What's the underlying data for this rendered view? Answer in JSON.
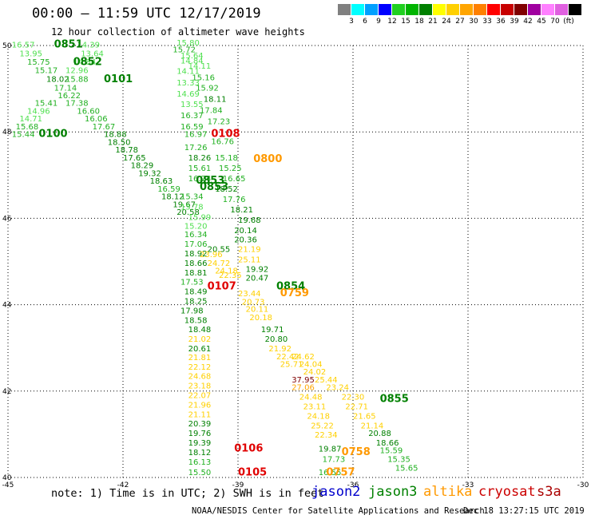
{
  "header": {
    "title": "00:00 – 11:59 UTC 12/17/2019",
    "subtitle": "12 hour collection of altimeter wave heights"
  },
  "legend": {
    "colors": [
      "#808080",
      "#00ffff",
      "#00a0ff",
      "#0000ff",
      "#20d020",
      "#00b400",
      "#008000",
      "#ffff00",
      "#ffd000",
      "#ffa500",
      "#ff8000",
      "#ff0000",
      "#c80000",
      "#800000",
      "#a000a0",
      "#ff80ff",
      "#e060e0",
      "#000000"
    ],
    "labels": [
      "3",
      "6",
      "9",
      "12",
      "15",
      "18",
      "21",
      "24",
      "27",
      "30",
      "33",
      "36",
      "39",
      "42",
      "45",
      "70",
      "(ft)"
    ]
  },
  "footer": {
    "note": "note: 1) Time is in UTC; 2) SWH is in feet",
    "credit": "NOAA/NESDIS Center for Satellite Applications and Research",
    "timestamp": "Dec 18 13:27:15 UTC 2019"
  },
  "satellites": [
    {
      "name": "jason2",
      "color": "#0000cc"
    },
    {
      "name": "jason3",
      "color": "#008000"
    },
    {
      "name": "altika",
      "color": "#ff9900"
    },
    {
      "name": "cryosat",
      "color": "#cc0000"
    },
    {
      "name": "s3a",
      "color": "#aa0000"
    }
  ],
  "chart_data": {
    "type": "scatter",
    "xlim": [
      -45,
      -30
    ],
    "ylim": [
      40,
      50
    ],
    "x_ticks": [
      -45,
      -42,
      -39,
      -36,
      -33,
      -30
    ],
    "y_ticks": [
      40,
      42,
      44,
      46,
      48,
      50
    ],
    "grid": true,
    "time_labels": [
      {
        "text": "0851",
        "x": -43.8,
        "y": 49.95,
        "color": "#008000"
      },
      {
        "text": "0852",
        "x": -43.3,
        "y": 49.55,
        "color": "#008000"
      },
      {
        "text": "0101",
        "x": -42.5,
        "y": 49.15,
        "color": "#008000"
      },
      {
        "text": "0100",
        "x": -44.2,
        "y": 47.88,
        "color": "#008000"
      },
      {
        "text": "0108",
        "x": -39.7,
        "y": 47.88,
        "color": "#e00000"
      },
      {
        "text": "0800",
        "x": -38.6,
        "y": 47.3,
        "color": "#ff9900"
      },
      {
        "text": "0853",
        "x": -40.1,
        "y": 46.8,
        "color": "#008000"
      },
      {
        "text": "0853",
        "x": -40.0,
        "y": 46.65,
        "color": "#008000"
      },
      {
        "text": "0854",
        "x": -38.0,
        "y": 44.35,
        "color": "#008000"
      },
      {
        "text": "0107",
        "x": -39.8,
        "y": 44.35,
        "color": "#e00000"
      },
      {
        "text": "0759",
        "x": -37.9,
        "y": 44.2,
        "color": "#ff9900"
      },
      {
        "text": "0855",
        "x": -35.3,
        "y": 41.75,
        "color": "#008000"
      },
      {
        "text": "0106",
        "x": -39.1,
        "y": 40.6,
        "color": "#e00000"
      },
      {
        "text": "0758",
        "x": -36.3,
        "y": 40.52,
        "color": "#ff9900"
      },
      {
        "text": "0105",
        "x": -39.0,
        "y": 40.05,
        "color": "#e00000"
      },
      {
        "text": "0757",
        "x": -36.7,
        "y": 40.05,
        "color": "#ff9900"
      }
    ],
    "swh_labels": [
      {
        "text": "16.57",
        "x": -44.9,
        "y": 49.95,
        "color": "#50e050"
      },
      {
        "text": "14.39",
        "x": -43.2,
        "y": 49.95,
        "color": "#50e050"
      },
      {
        "text": "13.95",
        "x": -44.7,
        "y": 49.75,
        "color": "#50e050"
      },
      {
        "text": "13.64",
        "x": -43.1,
        "y": 49.75,
        "color": "#50e050"
      },
      {
        "text": "15.75",
        "x": -44.5,
        "y": 49.56,
        "color": "#20b020"
      },
      {
        "text": "14.84",
        "x": -43.3,
        "y": 49.56,
        "color": "#50e050"
      },
      {
        "text": "15.17",
        "x": -44.3,
        "y": 49.36,
        "color": "#20b020"
      },
      {
        "text": "12.96",
        "x": -43.5,
        "y": 49.36,
        "color": "#50e050"
      },
      {
        "text": "18.02",
        "x": -44.0,
        "y": 49.16,
        "color": "#008000"
      },
      {
        "text": "15.88",
        "x": -43.5,
        "y": 49.16,
        "color": "#20b020"
      },
      {
        "text": "17.14",
        "x": -43.8,
        "y": 48.96,
        "color": "#20b020"
      },
      {
        "text": "16.22",
        "x": -43.7,
        "y": 48.78,
        "color": "#20b020"
      },
      {
        "text": "15.41",
        "x": -44.3,
        "y": 48.6,
        "color": "#20b020"
      },
      {
        "text": "17.38",
        "x": -43.5,
        "y": 48.6,
        "color": "#20b020"
      },
      {
        "text": "14.96",
        "x": -44.5,
        "y": 48.42,
        "color": "#50e050"
      },
      {
        "text": "16.60",
        "x": -43.2,
        "y": 48.42,
        "color": "#20b020"
      },
      {
        "text": "14.71",
        "x": -44.7,
        "y": 48.24,
        "color": "#50e050"
      },
      {
        "text": "16.06",
        "x": -43.0,
        "y": 48.24,
        "color": "#20b020"
      },
      {
        "text": "15.68",
        "x": -44.8,
        "y": 48.06,
        "color": "#20b020"
      },
      {
        "text": "17.67",
        "x": -42.8,
        "y": 48.06,
        "color": "#20b020"
      },
      {
        "text": "15.44",
        "x": -44.9,
        "y": 47.88,
        "color": "#20b020"
      },
      {
        "text": "18.88",
        "x": -42.5,
        "y": 47.88,
        "color": "#008000"
      },
      {
        "text": "18.50",
        "x": -42.4,
        "y": 47.7,
        "color": "#008000"
      },
      {
        "text": "18.78",
        "x": -42.2,
        "y": 47.52,
        "color": "#008000"
      },
      {
        "text": "17.65",
        "x": -42.0,
        "y": 47.34,
        "color": "#008000"
      },
      {
        "text": "18.29",
        "x": -41.8,
        "y": 47.16,
        "color": "#008000"
      },
      {
        "text": "19.32",
        "x": -41.6,
        "y": 46.98,
        "color": "#008000"
      },
      {
        "text": "18.63",
        "x": -41.3,
        "y": 46.8,
        "color": "#008000"
      },
      {
        "text": "16.59",
        "x": -41.1,
        "y": 46.62,
        "color": "#20b020"
      },
      {
        "text": "18.12",
        "x": -41.0,
        "y": 46.44,
        "color": "#008000"
      },
      {
        "text": "19.67",
        "x": -40.7,
        "y": 46.26,
        "color": "#008000"
      },
      {
        "text": "20.58",
        "x": -40.6,
        "y": 46.08,
        "color": "#008000"
      },
      {
        "text": "15.80",
        "x": -40.6,
        "y": 50.0,
        "color": "#50e050"
      },
      {
        "text": "15.72",
        "x": -40.7,
        "y": 49.84,
        "color": "#20b020"
      },
      {
        "text": "15.64",
        "x": -40.5,
        "y": 49.7,
        "color": "#50e050"
      },
      {
        "text": "14.84",
        "x": -40.5,
        "y": 49.58,
        "color": "#50e050"
      },
      {
        "text": "14.11",
        "x": -40.3,
        "y": 49.46,
        "color": "#50e050"
      },
      {
        "text": "14.11",
        "x": -40.6,
        "y": 49.34,
        "color": "#50e050"
      },
      {
        "text": "15.16",
        "x": -40.2,
        "y": 49.2,
        "color": "#20b020"
      },
      {
        "text": "13.33",
        "x": -40.6,
        "y": 49.08,
        "color": "#50e050"
      },
      {
        "text": "15.92",
        "x": -40.1,
        "y": 48.96,
        "color": "#20b020"
      },
      {
        "text": "14.69",
        "x": -40.6,
        "y": 48.82,
        "color": "#50e050"
      },
      {
        "text": "18.11",
        "x": -39.9,
        "y": 48.7,
        "color": "#008000"
      },
      {
        "text": "13.55",
        "x": -40.5,
        "y": 48.58,
        "color": "#50e050"
      },
      {
        "text": "17.84",
        "x": -40.0,
        "y": 48.44,
        "color": "#20b020"
      },
      {
        "text": "16.37",
        "x": -40.5,
        "y": 48.32,
        "color": "#20b020"
      },
      {
        "text": "17.23",
        "x": -39.8,
        "y": 48.18,
        "color": "#20b020"
      },
      {
        "text": "16.59",
        "x": -40.5,
        "y": 48.06,
        "color": "#20b020"
      },
      {
        "text": "16.97",
        "x": -40.4,
        "y": 47.88,
        "color": "#20b020"
      },
      {
        "text": "16.76",
        "x": -39.7,
        "y": 47.72,
        "color": "#20b020"
      },
      {
        "text": "17.26",
        "x": -40.4,
        "y": 47.58,
        "color": "#20b020"
      },
      {
        "text": "18.26",
        "x": -40.3,
        "y": 47.34,
        "color": "#008000"
      },
      {
        "text": "15.18",
        "x": -39.6,
        "y": 47.34,
        "color": "#20b020"
      },
      {
        "text": "15.61",
        "x": -40.3,
        "y": 47.1,
        "color": "#20b020"
      },
      {
        "text": "15.25",
        "x": -39.5,
        "y": 47.1,
        "color": "#20b020"
      },
      {
        "text": "16.74",
        "x": -40.3,
        "y": 46.86,
        "color": "#20b020"
      },
      {
        "text": "16.65",
        "x": -39.4,
        "y": 46.86,
        "color": "#20b020"
      },
      {
        "text": "18.52",
        "x": -39.6,
        "y": 46.62,
        "color": "#008000"
      },
      {
        "text": "15.34",
        "x": -40.5,
        "y": 46.44,
        "color": "#20b020"
      },
      {
        "text": "17.76",
        "x": -39.4,
        "y": 46.38,
        "color": "#20b020"
      },
      {
        "text": "15.78",
        "x": -40.5,
        "y": 46.2,
        "color": "#50e050"
      },
      {
        "text": "18.21",
        "x": -39.2,
        "y": 46.14,
        "color": "#008000"
      },
      {
        "text": "15.99",
        "x": -40.3,
        "y": 45.96,
        "color": "#50e050"
      },
      {
        "text": "19.68",
        "x": -39.0,
        "y": 45.9,
        "color": "#008000"
      },
      {
        "text": "15.20",
        "x": -40.4,
        "y": 45.76,
        "color": "#50e050"
      },
      {
        "text": "20.14",
        "x": -39.1,
        "y": 45.66,
        "color": "#008000"
      },
      {
        "text": "16.34",
        "x": -40.4,
        "y": 45.56,
        "color": "#20b020"
      },
      {
        "text": "20.36",
        "x": -39.1,
        "y": 45.44,
        "color": "#008000"
      },
      {
        "text": "17.06",
        "x": -40.4,
        "y": 45.34,
        "color": "#20b020"
      },
      {
        "text": "20.55",
        "x": -39.8,
        "y": 45.22,
        "color": "#008000"
      },
      {
        "text": "21.19",
        "x": -39.0,
        "y": 45.22,
        "color": "#ffd000"
      },
      {
        "text": "18.92",
        "x": -40.4,
        "y": 45.12,
        "color": "#008000"
      },
      {
        "text": "23.96",
        "x": -40.0,
        "y": 45.1,
        "color": "#ffd000"
      },
      {
        "text": "25.11",
        "x": -39.0,
        "y": 44.98,
        "color": "#ffd000"
      },
      {
        "text": "18.66",
        "x": -40.4,
        "y": 44.9,
        "color": "#008000"
      },
      {
        "text": "24.72",
        "x": -39.8,
        "y": 44.9,
        "color": "#ffd000"
      },
      {
        "text": "19.92",
        "x": -38.8,
        "y": 44.76,
        "color": "#008000"
      },
      {
        "text": "18.81",
        "x": -40.4,
        "y": 44.68,
        "color": "#008000"
      },
      {
        "text": "24.18",
        "x": -39.6,
        "y": 44.72,
        "color": "#ffd000"
      },
      {
        "text": "22.35",
        "x": -39.5,
        "y": 44.62,
        "color": "#ffd000"
      },
      {
        "text": "20.47",
        "x": -38.8,
        "y": 44.56,
        "color": "#008000"
      },
      {
        "text": "17.53",
        "x": -40.5,
        "y": 44.46,
        "color": "#20b020"
      },
      {
        "text": "18.49",
        "x": -40.4,
        "y": 44.24,
        "color": "#008000"
      },
      {
        "text": "23.44",
        "x": -39.0,
        "y": 44.2,
        "color": "#ffd000"
      },
      {
        "text": "18.25",
        "x": -40.4,
        "y": 44.02,
        "color": "#008000"
      },
      {
        "text": "20.73",
        "x": -38.9,
        "y": 44.0,
        "color": "#ffd000"
      },
      {
        "text": "17.98",
        "x": -40.5,
        "y": 43.8,
        "color": "#008000"
      },
      {
        "text": "20.11",
        "x": -38.8,
        "y": 43.84,
        "color": "#ffd000"
      },
      {
        "text": "18.58",
        "x": -40.4,
        "y": 43.58,
        "color": "#008000"
      },
      {
        "text": "20.18",
        "x": -38.7,
        "y": 43.64,
        "color": "#ffd000"
      },
      {
        "text": "18.48",
        "x": -40.3,
        "y": 43.36,
        "color": "#008000"
      },
      {
        "text": "19.71",
        "x": -38.4,
        "y": 43.36,
        "color": "#008000"
      },
      {
        "text": "21.02",
        "x": -40.3,
        "y": 43.14,
        "color": "#ffd000"
      },
      {
        "text": "20.80",
        "x": -38.3,
        "y": 43.14,
        "color": "#008000"
      },
      {
        "text": "20.61",
        "x": -40.3,
        "y": 42.92,
        "color": "#008000"
      },
      {
        "text": "21.92",
        "x": -38.2,
        "y": 42.92,
        "color": "#ffd000"
      },
      {
        "text": "21.81",
        "x": -40.3,
        "y": 42.72,
        "color": "#ffd000"
      },
      {
        "text": "22.42",
        "x": -38.0,
        "y": 42.74,
        "color": "#ffd000"
      },
      {
        "text": "24.62",
        "x": -37.6,
        "y": 42.74,
        "color": "#ffd000"
      },
      {
        "text": "22.12",
        "x": -40.3,
        "y": 42.5,
        "color": "#ffd000"
      },
      {
        "text": "25.71",
        "x": -37.9,
        "y": 42.56,
        "color": "#ffd000"
      },
      {
        "text": "24.04",
        "x": -37.4,
        "y": 42.56,
        "color": "#ffd000"
      },
      {
        "text": "24.68",
        "x": -40.3,
        "y": 42.28,
        "color": "#ffd000"
      },
      {
        "text": "24.02",
        "x": -37.3,
        "y": 42.38,
        "color": "#ffd000"
      },
      {
        "text": "37.95",
        "x": -37.6,
        "y": 42.2,
        "color": "#800000"
      },
      {
        "text": "25.44",
        "x": -37.0,
        "y": 42.2,
        "color": "#ffd000"
      },
      {
        "text": "23.18",
        "x": -40.3,
        "y": 42.06,
        "color": "#ffd000"
      },
      {
        "text": "27.06",
        "x": -37.6,
        "y": 42.02,
        "color": "#ffa500"
      },
      {
        "text": "23.24",
        "x": -36.7,
        "y": 42.02,
        "color": "#ffd000"
      },
      {
        "text": "22.07",
        "x": -40.3,
        "y": 41.84,
        "color": "#ffd000"
      },
      {
        "text": "24.48",
        "x": -37.4,
        "y": 41.8,
        "color": "#ffd000"
      },
      {
        "text": "22.30",
        "x": -36.3,
        "y": 41.8,
        "color": "#ffd000"
      },
      {
        "text": "21.96",
        "x": -40.3,
        "y": 41.62,
        "color": "#ffd000"
      },
      {
        "text": "23.11",
        "x": -37.3,
        "y": 41.58,
        "color": "#ffd000"
      },
      {
        "text": "22.71",
        "x": -36.2,
        "y": 41.58,
        "color": "#ffd000"
      },
      {
        "text": "21.11",
        "x": -40.3,
        "y": 41.4,
        "color": "#ffd000"
      },
      {
        "text": "24.18",
        "x": -37.2,
        "y": 41.36,
        "color": "#ffd000"
      },
      {
        "text": "21.65",
        "x": -36.0,
        "y": 41.36,
        "color": "#ffd000"
      },
      {
        "text": "20.39",
        "x": -40.3,
        "y": 41.18,
        "color": "#008000"
      },
      {
        "text": "25.22",
        "x": -37.1,
        "y": 41.14,
        "color": "#ffd000"
      },
      {
        "text": "21.14",
        "x": -35.8,
        "y": 41.14,
        "color": "#ffd000"
      },
      {
        "text": "19.76",
        "x": -40.3,
        "y": 40.96,
        "color": "#008000"
      },
      {
        "text": "20.88",
        "x": -35.6,
        "y": 40.96,
        "color": "#008000"
      },
      {
        "text": "22.34",
        "x": -37.0,
        "y": 40.92,
        "color": "#ffd000"
      },
      {
        "text": "19.39",
        "x": -40.3,
        "y": 40.74,
        "color": "#008000"
      },
      {
        "text": "18.66",
        "x": -35.4,
        "y": 40.74,
        "color": "#008000"
      },
      {
        "text": "19.87",
        "x": -36.9,
        "y": 40.6,
        "color": "#008000"
      },
      {
        "text": "18.12",
        "x": -40.3,
        "y": 40.52,
        "color": "#008000"
      },
      {
        "text": "15.59",
        "x": -35.3,
        "y": 40.56,
        "color": "#20b020"
      },
      {
        "text": "17.73",
        "x": -36.8,
        "y": 40.36,
        "color": "#20b020"
      },
      {
        "text": "15.35",
        "x": -35.1,
        "y": 40.36,
        "color": "#20b020"
      },
      {
        "text": "16.13",
        "x": -40.3,
        "y": 40.3,
        "color": "#20b020"
      },
      {
        "text": "15.65",
        "x": -34.9,
        "y": 40.16,
        "color": "#20b020"
      },
      {
        "text": "15.50",
        "x": -40.3,
        "y": 40.06,
        "color": "#20b020"
      },
      {
        "text": "16.55",
        "x": -36.9,
        "y": 40.06,
        "color": "#20b020"
      }
    ]
  }
}
